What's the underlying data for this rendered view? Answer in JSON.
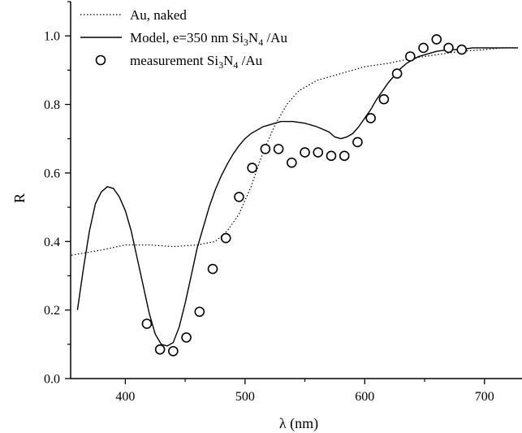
{
  "chart_data": {
    "type": "line",
    "xlabel": "λ (nm)",
    "ylabel": "R",
    "xlim": [
      355,
      730
    ],
    "ylim": [
      0,
      1.1
    ],
    "x_ticks": [
      400,
      500,
      600,
      700
    ],
    "y_ticks": [
      0.0,
      0.2,
      0.4,
      0.6,
      0.8,
      1.0
    ],
    "x_tick_labels": [
      "400",
      "500",
      "600",
      "700"
    ],
    "y_tick_labels": [
      "0.0",
      "0.2",
      "0.4",
      "0.6",
      "0.8",
      "1.0"
    ],
    "grid": false,
    "legend_position": "top-left",
    "series": [
      {
        "name": "Au, naked",
        "style": "dotted",
        "color": "#000000",
        "points": [
          [
            355,
            0.36
          ],
          [
            380,
            0.375
          ],
          [
            400,
            0.39
          ],
          [
            420,
            0.39
          ],
          [
            440,
            0.385
          ],
          [
            460,
            0.39
          ],
          [
            475,
            0.4
          ],
          [
            485,
            0.43
          ],
          [
            495,
            0.48
          ],
          [
            505,
            0.56
          ],
          [
            515,
            0.66
          ],
          [
            525,
            0.74
          ],
          [
            535,
            0.8
          ],
          [
            545,
            0.84
          ],
          [
            560,
            0.87
          ],
          [
            580,
            0.89
          ],
          [
            600,
            0.91
          ],
          [
            620,
            0.92
          ],
          [
            640,
            0.935
          ],
          [
            660,
            0.945
          ],
          [
            680,
            0.955
          ],
          [
            700,
            0.96
          ],
          [
            715,
            0.965
          ],
          [
            728,
            0.965
          ]
        ]
      },
      {
        "name_parts": [
          "Model, e=350 nm Si",
          "3",
          "N",
          "4",
          " /Au"
        ],
        "style": "solid",
        "color": "#000000",
        "points": [
          [
            360,
            0.2
          ],
          [
            365,
            0.32
          ],
          [
            370,
            0.43
          ],
          [
            375,
            0.51
          ],
          [
            380,
            0.545
          ],
          [
            385,
            0.56
          ],
          [
            390,
            0.555
          ],
          [
            395,
            0.53
          ],
          [
            400,
            0.49
          ],
          [
            405,
            0.43
          ],
          [
            410,
            0.35
          ],
          [
            415,
            0.27
          ],
          [
            420,
            0.19
          ],
          [
            425,
            0.13
          ],
          [
            430,
            0.1
          ],
          [
            435,
            0.095
          ],
          [
            440,
            0.105
          ],
          [
            445,
            0.15
          ],
          [
            450,
            0.22
          ],
          [
            455,
            0.3
          ],
          [
            460,
            0.38
          ],
          [
            465,
            0.44
          ],
          [
            470,
            0.5
          ],
          [
            475,
            0.55
          ],
          [
            480,
            0.59
          ],
          [
            485,
            0.625
          ],
          [
            490,
            0.655
          ],
          [
            495,
            0.68
          ],
          [
            500,
            0.7
          ],
          [
            505,
            0.715
          ],
          [
            510,
            0.725
          ],
          [
            515,
            0.735
          ],
          [
            520,
            0.74
          ],
          [
            525,
            0.745
          ],
          [
            530,
            0.75
          ],
          [
            540,
            0.75
          ],
          [
            550,
            0.745
          ],
          [
            560,
            0.735
          ],
          [
            570,
            0.72
          ],
          [
            575,
            0.705
          ],
          [
            580,
            0.7
          ],
          [
            585,
            0.705
          ],
          [
            590,
            0.715
          ],
          [
            595,
            0.735
          ],
          [
            600,
            0.76
          ],
          [
            605,
            0.785
          ],
          [
            610,
            0.815
          ],
          [
            615,
            0.84
          ],
          [
            620,
            0.865
          ],
          [
            625,
            0.885
          ],
          [
            630,
            0.905
          ],
          [
            635,
            0.92
          ],
          [
            640,
            0.93
          ],
          [
            645,
            0.94
          ],
          [
            650,
            0.945
          ],
          [
            660,
            0.955
          ],
          [
            670,
            0.96
          ],
          [
            680,
            0.96
          ],
          [
            690,
            0.965
          ],
          [
            700,
            0.965
          ],
          [
            728,
            0.965
          ]
        ]
      },
      {
        "name_parts": [
          "measurement Si",
          "3",
          "N",
          "4",
          " /Au"
        ],
        "style": "markers",
        "marker": "open-circle",
        "color": "#000000",
        "points": [
          [
            418,
            0.16
          ],
          [
            429,
            0.085
          ],
          [
            440,
            0.08
          ],
          [
            451,
            0.12
          ],
          [
            462,
            0.195
          ],
          [
            473,
            0.32
          ],
          [
            484,
            0.41
          ],
          [
            495,
            0.53
          ],
          [
            506,
            0.615
          ],
          [
            517,
            0.67
          ],
          [
            528,
            0.67
          ],
          [
            539,
            0.63
          ],
          [
            550,
            0.66
          ],
          [
            561,
            0.66
          ],
          [
            572,
            0.65
          ],
          [
            583,
            0.65
          ],
          [
            594,
            0.69
          ],
          [
            605,
            0.76
          ],
          [
            616,
            0.815
          ],
          [
            627,
            0.89
          ],
          [
            638,
            0.94
          ],
          [
            649,
            0.965
          ],
          [
            660,
            0.99
          ],
          [
            670,
            0.965
          ],
          [
            681,
            0.96
          ]
        ]
      }
    ]
  }
}
